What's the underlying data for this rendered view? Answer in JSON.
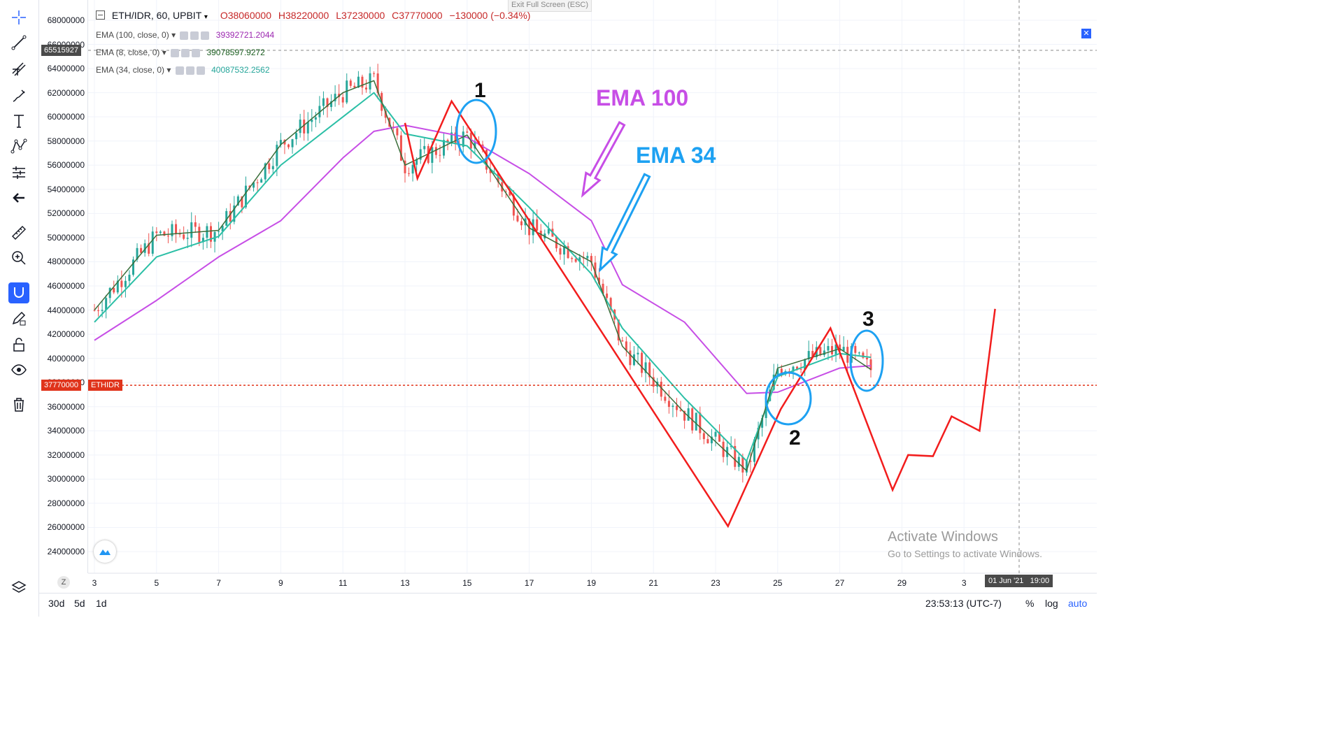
{
  "header": {
    "symbol": "ETH/IDR, 60, UPBIT",
    "open": "O38060000",
    "high": "H38220000",
    "low": "L37230000",
    "close": "C37770000",
    "change": "−130000 (−0.34%)",
    "exit_fullscreen": "Exit Full Screen (ESC)"
  },
  "indicators": [
    {
      "label": "EMA (100, close, 0)",
      "value": "39392721.2044",
      "color": "#9c27b0"
    },
    {
      "label": "EMA (8, close, 0)",
      "value": "39078597.9272",
      "color": "#1b5e20"
    },
    {
      "label": "EMA (34, close, 0)",
      "value": "40087532.2562",
      "color": "#26a69a"
    }
  ],
  "price_tags": {
    "crosshair": "65515927",
    "last": "37770000",
    "last_symbol": "ETHIDR"
  },
  "annotations": {
    "ema100": "EMA 100",
    "ema34": "EMA 34",
    "n1": "1",
    "n2": "2",
    "n3": "3",
    "watermark_title": "Activate Windows",
    "watermark_sub": "Go to Settings to activate Windows."
  },
  "x_tooltip": "01 Jun '21   19:00",
  "bottom": {
    "range_30d": "30d",
    "range_5d": "5d",
    "range_1d": "1d",
    "clock": "23:53:13 (UTC-7)",
    "percent": "%",
    "log": "log",
    "auto": "auto",
    "zoom": "Z"
  },
  "colors": {
    "ema100": "#c74ee6",
    "ema34": "#2bbfa6",
    "ema8": "#3a6e3a",
    "bull": "#26a69a",
    "bear": "#ef5350",
    "projection": "#f21d1d",
    "circle": "#1da1f2",
    "last_price": "#e0341b"
  },
  "chart_data": {
    "type": "line",
    "title": "ETH/IDR, 60, UPBIT",
    "x_ticks": [
      "3",
      "5",
      "7",
      "9",
      "11",
      "13",
      "15",
      "17",
      "19",
      "21",
      "23",
      "25",
      "27",
      "29",
      "3"
    ],
    "y_ticks": [
      "68000000",
      "66000000",
      "64000000",
      "62000000",
      "60000000",
      "58000000",
      "56000000",
      "54000000",
      "52000000",
      "50000000",
      "48000000",
      "46000000",
      "44000000",
      "42000000",
      "40000000",
      "38000000",
      "36000000",
      "34000000",
      "32000000",
      "30000000",
      "28000000",
      "26000000",
      "24000000"
    ],
    "ylim": [
      23000000,
      69000000
    ],
    "xlim": [
      "2021-05-03",
      "2021-06-03"
    ],
    "series": [
      {
        "name": "EMA (100, close, 0)",
        "x": [
          "2021-05-03",
          "2021-05-05",
          "2021-05-07",
          "2021-05-09",
          "2021-05-11",
          "2021-05-12",
          "2021-05-13",
          "2021-05-15",
          "2021-05-17",
          "2021-05-19",
          "2021-05-20",
          "2021-05-22",
          "2021-05-24",
          "2021-05-25",
          "2021-05-27",
          "2021-05-28"
        ],
        "values": [
          41500000,
          44800000,
          48400000,
          51400000,
          56600000,
          58800000,
          59300000,
          58300000,
          55300000,
          51400000,
          46100000,
          43000000,
          37100000,
          37200000,
          39200000,
          39392721
        ]
      },
      {
        "name": "EMA (34, close, 0)",
        "x": [
          "2021-05-03",
          "2021-05-05",
          "2021-05-07",
          "2021-05-09",
          "2021-05-11",
          "2021-05-12",
          "2021-05-13",
          "2021-05-15",
          "2021-05-17",
          "2021-05-19",
          "2021-05-20",
          "2021-05-22",
          "2021-05-24",
          "2021-05-25",
          "2021-05-27",
          "2021-05-28"
        ],
        "values": [
          43000000,
          48400000,
          50100000,
          56000000,
          60000000,
          62000000,
          58600000,
          57600000,
          52500000,
          47000000,
          42500000,
          36700000,
          31500000,
          38500000,
          40400000,
          40087532
        ]
      },
      {
        "name": "EMA (8, close, 0)",
        "x": [
          "2021-05-03",
          "2021-05-05",
          "2021-05-07",
          "2021-05-09",
          "2021-05-11",
          "2021-05-12",
          "2021-05-13",
          "2021-05-15",
          "2021-05-17",
          "2021-05-19",
          "2021-05-20",
          "2021-05-22",
          "2021-05-24",
          "2021-05-25",
          "2021-05-27",
          "2021-05-28"
        ],
        "values": [
          44000000,
          50200000,
          50600000,
          57700000,
          62000000,
          63000000,
          56000000,
          58500000,
          50800000,
          48000000,
          41000000,
          35500000,
          30700000,
          39200000,
          40800000,
          39078598
        ]
      },
      {
        "name": "Projection",
        "x": [
          "2021-05-13",
          "2021-05-13.4",
          "2021-05-14.5",
          "2021-05-23.4",
          "2021-05-25.1",
          "2021-05-26.7",
          "2021-05-28.7",
          "2021-05-29.2",
          "2021-05-30.0",
          "2021-05-30.6",
          "2021-05-31.5",
          "2021-06-01"
        ],
        "values": [
          59500000,
          54900000,
          61300000,
          26100000,
          35800000,
          42500000,
          29100000,
          32000000,
          31900000,
          35200000,
          34000000,
          44100000
        ]
      }
    ],
    "last_price": 37770000
  }
}
